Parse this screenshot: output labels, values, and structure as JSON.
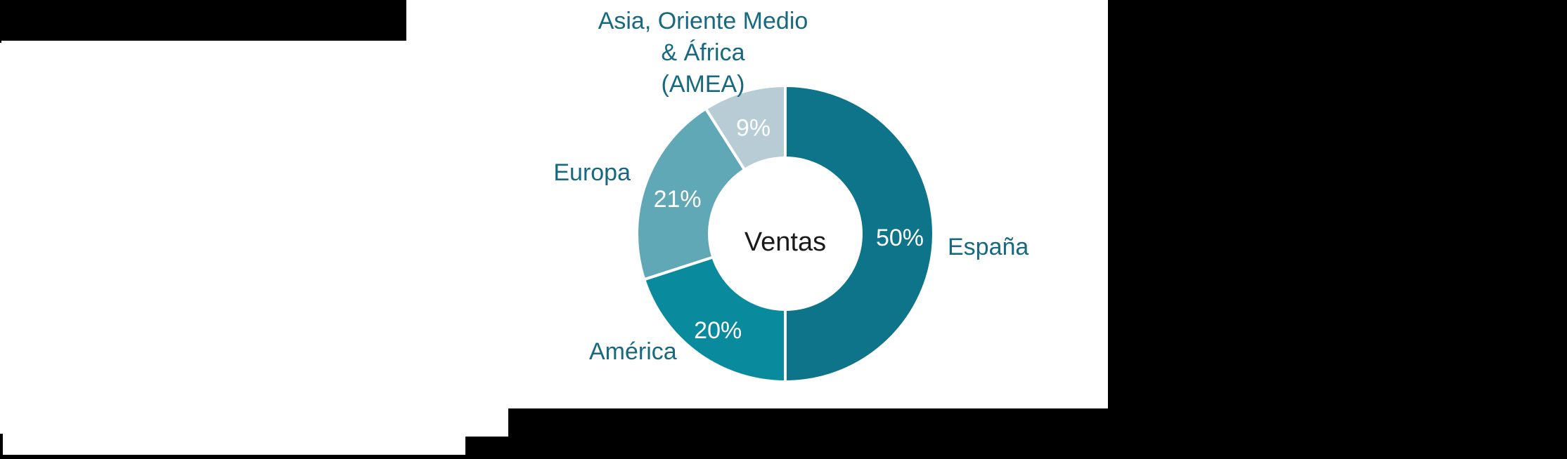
{
  "chart_data": {
    "type": "pie",
    "subtype": "donut",
    "title": "Ventas",
    "center_label": "Ventas",
    "units": "%",
    "start_angle_deg": 0,
    "direction": "clockwise",
    "legend_position": "outside-labels",
    "segments": [
      {
        "id": "espana",
        "label": "España",
        "value": 50,
        "color": "#0d7489"
      },
      {
        "id": "america",
        "label": "América",
        "value": 20,
        "color": "#0a8a9d"
      },
      {
        "id": "europa",
        "label": "Europa",
        "value": 21,
        "color": "#61a8b6"
      },
      {
        "id": "amea",
        "label": "Asia, Oriente Medio & África (AMEA)",
        "value": 9,
        "color": "#b7ccd5",
        "label_lines": [
          "Asia, Oriente Medio",
          "& África",
          "(AMEA)"
        ]
      }
    ],
    "percent_labels": [
      "50%",
      "20%",
      "21%",
      "9%"
    ],
    "percent_label_color": "#ffffff",
    "region_label_color": "#16697e",
    "center_label_color": "#1a1a1a",
    "slice_separator_color": "#ffffff"
  }
}
